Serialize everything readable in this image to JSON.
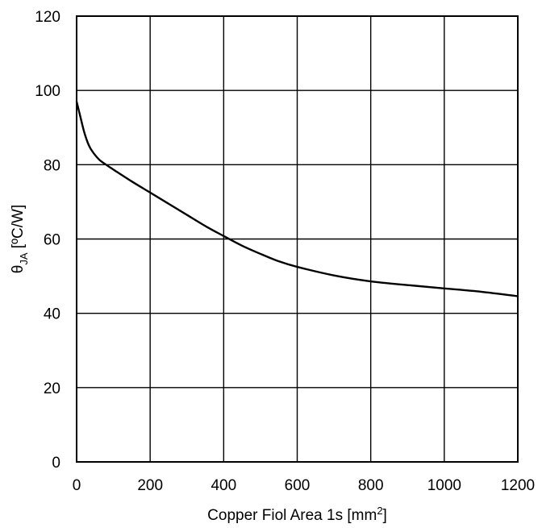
{
  "chart_data": {
    "type": "line",
    "xlabel": {
      "main": "Copper Fiol Area 1s [mm",
      "sup": "2",
      "suffix": "]"
    },
    "ylabel": {
      "main": "θ",
      "sub": "JA",
      "suffix": " [ºC/W]"
    },
    "xlim": [
      0,
      1200
    ],
    "ylim": [
      0,
      120
    ],
    "x_ticks": [
      0,
      200,
      400,
      600,
      800,
      1000,
      1200
    ],
    "y_ticks": [
      0,
      20,
      40,
      60,
      80,
      100,
      120
    ],
    "x_tick_labels": [
      "0",
      "200",
      "400",
      "600",
      "800",
      "1000",
      "1200"
    ],
    "y_tick_labels": [
      "0",
      "20",
      "40",
      "60",
      "80",
      "100",
      "120"
    ],
    "grid": true,
    "series": [
      {
        "color": "#000000",
        "x": [
          0,
          10,
          20,
          30,
          40,
          60,
          80,
          100,
          150,
          200,
          250,
          300,
          350,
          400,
          450,
          500,
          550,
          600,
          700,
          800,
          900,
          1000,
          1100,
          1200
        ],
        "y": [
          97,
          93,
          89,
          86,
          84,
          81.5,
          80,
          78.7,
          75.5,
          72.5,
          69.5,
          66.5,
          63.5,
          60.8,
          58.2,
          56,
          54,
          52.5,
          50.2,
          48.6,
          47.6,
          46.7,
          45.8,
          44.6
        ]
      }
    ]
  }
}
